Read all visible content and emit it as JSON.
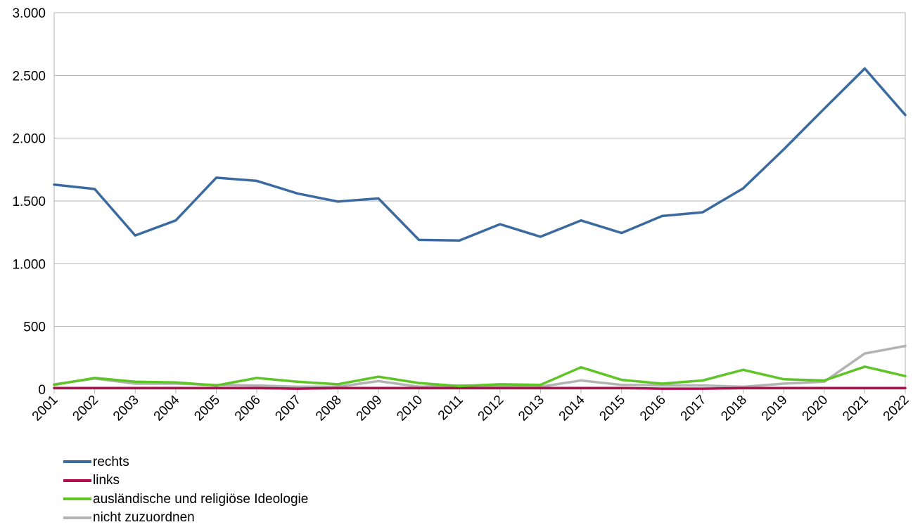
{
  "chart_data": {
    "type": "line",
    "title": "",
    "xlabel": "",
    "ylabel": "",
    "x": [
      "2001",
      "2002",
      "2003",
      "2004",
      "2005",
      "2006",
      "2007",
      "2008",
      "2009",
      "2010",
      "2011",
      "2012",
      "2013",
      "2014",
      "2015",
      "2016",
      "2017",
      "2018",
      "2019",
      "2020",
      "2021",
      "2022"
    ],
    "y_ticks": [
      {
        "value": 0,
        "label": "0"
      },
      {
        "value": 500,
        "label": "500"
      },
      {
        "value": 1000,
        "label": "1.000"
      },
      {
        "value": 1500,
        "label": "1.500"
      },
      {
        "value": 2000,
        "label": "2.000"
      },
      {
        "value": 2500,
        "label": "2.500"
      },
      {
        "value": 3000,
        "label": "3.000"
      }
    ],
    "ylim": [
      0,
      3000
    ],
    "grid": "horizontal",
    "legend_position": "bottom-left",
    "series": [
      {
        "name": "rechts",
        "color": "#3b6aa0",
        "values": [
          1630,
          1595,
          1225,
          1345,
          1685,
          1660,
          1560,
          1495,
          1520,
          1190,
          1185,
          1315,
          1215,
          1345,
          1245,
          1380,
          1410,
          1600,
          1910,
          2235,
          2555,
          2185
        ]
      },
      {
        "name": "links",
        "color": "#b0104f",
        "values": [
          10,
          10,
          10,
          10,
          10,
          10,
          5,
          10,
          10,
          10,
          10,
          10,
          10,
          10,
          10,
          5,
          5,
          10,
          10,
          10,
          10,
          10
        ]
      },
      {
        "name": "ausländische und religiöse Ideologie",
        "color": "#5fc425",
        "values": [
          35,
          90,
          60,
          55,
          30,
          90,
          60,
          40,
          100,
          50,
          25,
          40,
          35,
          175,
          75,
          45,
          70,
          155,
          80,
          70,
          180,
          105
        ]
      },
      {
        "name": "nicht zuzuordnen",
        "color": "#b3b3b3",
        "values": [
          40,
          85,
          45,
          45,
          35,
          30,
          20,
          20,
          65,
          20,
          30,
          25,
          20,
          70,
          35,
          30,
          30,
          20,
          45,
          60,
          285,
          345
        ]
      }
    ]
  }
}
